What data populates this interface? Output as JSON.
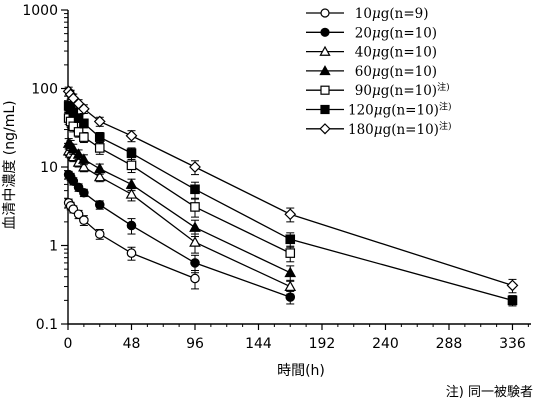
{
  "chart_data": {
    "type": "line",
    "xlabel": "時間(h)",
    "ylabel": "血清中濃度 (ng/mL)",
    "xlim": [
      0,
      350
    ],
    "ylim": [
      0.1,
      1000
    ],
    "y_scale": "log",
    "x_ticks": [
      0,
      48,
      96,
      144,
      192,
      240,
      288,
      336
    ],
    "y_ticks": [
      {
        "value": 0.1,
        "label": "0.1"
      },
      {
        "value": 1,
        "label": "1"
      },
      {
        "value": 10,
        "label": "10"
      },
      {
        "value": 100,
        "label": "100"
      },
      {
        "value": 1000,
        "label": "1000"
      }
    ],
    "legend_position": "top-right",
    "footnote": "注) 同一被験者",
    "series": [
      {
        "name": "10μg(n=9)",
        "marker": "circle-open",
        "legend": {
          "dose": "10",
          "unit": "μg",
          "n": "(n=9)",
          "note": ""
        },
        "points": [
          {
            "x": 0.5,
            "y": 3.5,
            "err": 0.4
          },
          {
            "x": 2,
            "y": 3.2,
            "err": 0.35
          },
          {
            "x": 4,
            "y": 2.9,
            "err": 0.3
          },
          {
            "x": 8,
            "y": 2.5,
            "err": 0.3
          },
          {
            "x": 12,
            "y": 2.1,
            "err": 0.3
          },
          {
            "x": 24,
            "y": 1.4,
            "err": 0.2
          },
          {
            "x": 48,
            "y": 0.8,
            "err": 0.15
          },
          {
            "x": 96,
            "y": 0.38,
            "err": 0.1
          }
        ]
      },
      {
        "name": "20μg(n=10)",
        "marker": "circle-filled",
        "legend": {
          "dose": "20",
          "unit": "μg",
          "n": "(n=10)",
          "note": ""
        },
        "points": [
          {
            "x": 0.5,
            "y": 8,
            "err": 0.8
          },
          {
            "x": 2,
            "y": 7.5,
            "err": 0.8
          },
          {
            "x": 4,
            "y": 6.6,
            "err": 0.7
          },
          {
            "x": 8,
            "y": 5.5,
            "err": 0.6
          },
          {
            "x": 12,
            "y": 4.7,
            "err": 0.5
          },
          {
            "x": 24,
            "y": 3.3,
            "err": 0.4
          },
          {
            "x": 48,
            "y": 1.8,
            "err": 0.4
          },
          {
            "x": 96,
            "y": 0.6,
            "err": 0.15
          },
          {
            "x": 168,
            "y": 0.22,
            "err": 0.04
          }
        ]
      },
      {
        "name": "40μg(n=10)",
        "marker": "triangle-open",
        "legend": {
          "dose": "40",
          "unit": "μg",
          "n": "(n=10)",
          "note": ""
        },
        "points": [
          {
            "x": 0.5,
            "y": 16,
            "err": 2
          },
          {
            "x": 2,
            "y": 15,
            "err": 2
          },
          {
            "x": 4,
            "y": 13.5,
            "err": 1.8
          },
          {
            "x": 8,
            "y": 11.5,
            "err": 1.5
          },
          {
            "x": 12,
            "y": 10,
            "err": 1.3
          },
          {
            "x": 24,
            "y": 7.5,
            "err": 1
          },
          {
            "x": 48,
            "y": 4.5,
            "err": 0.8
          },
          {
            "x": 96,
            "y": 1.1,
            "err": 0.3
          },
          {
            "x": 168,
            "y": 0.3,
            "err": 0.06
          }
        ]
      },
      {
        "name": "60μg(n=10)",
        "marker": "triangle-filled",
        "legend": {
          "dose": "60",
          "unit": "μg",
          "n": "(n=10)",
          "note": ""
        },
        "points": [
          {
            "x": 0.5,
            "y": 20,
            "err": 3
          },
          {
            "x": 2,
            "y": 19,
            "err": 2.8
          },
          {
            "x": 4,
            "y": 17,
            "err": 2.5
          },
          {
            "x": 8,
            "y": 14.5,
            "err": 2
          },
          {
            "x": 12,
            "y": 12.5,
            "err": 1.8
          },
          {
            "x": 24,
            "y": 9.5,
            "err": 1.4
          },
          {
            "x": 48,
            "y": 6,
            "err": 1
          },
          {
            "x": 96,
            "y": 1.7,
            "err": 0.4
          },
          {
            "x": 168,
            "y": 0.45,
            "err": 0.1
          }
        ]
      },
      {
        "name": "90μg(n=10)注)",
        "marker": "square-open",
        "legend": {
          "dose": "90",
          "unit": "μg",
          "n": "(n=10)",
          "note": "注)"
        },
        "points": [
          {
            "x": 0.5,
            "y": 42,
            "err": 7
          },
          {
            "x": 2,
            "y": 38,
            "err": 6
          },
          {
            "x": 4,
            "y": 33,
            "err": 5
          },
          {
            "x": 8,
            "y": 28,
            "err": 4
          },
          {
            "x": 12,
            "y": 24,
            "err": 3.5
          },
          {
            "x": 24,
            "y": 17.5,
            "err": 3
          },
          {
            "x": 48,
            "y": 10.5,
            "err": 2
          },
          {
            "x": 96,
            "y": 3.1,
            "err": 0.8
          },
          {
            "x": 168,
            "y": 0.8,
            "err": 0.18
          }
        ]
      },
      {
        "name": "120μg(n=10)注)",
        "marker": "square-filled",
        "legend": {
          "dose": "120",
          "unit": "μg",
          "n": "(n=10)",
          "note": "注)"
        },
        "points": [
          {
            "x": 0.5,
            "y": 60,
            "err": 8
          },
          {
            "x": 2,
            "y": 55,
            "err": 7
          },
          {
            "x": 4,
            "y": 50,
            "err": 6
          },
          {
            "x": 8,
            "y": 42,
            "err": 5
          },
          {
            "x": 12,
            "y": 36,
            "err": 4.5
          },
          {
            "x": 24,
            "y": 24,
            "err": 3.5
          },
          {
            "x": 48,
            "y": 15,
            "err": 2.5
          },
          {
            "x": 96,
            "y": 5.2,
            "err": 1.2
          },
          {
            "x": 168,
            "y": 1.2,
            "err": 0.25
          },
          {
            "x": 336,
            "y": 0.2,
            "err": 0.03
          }
        ]
      },
      {
        "name": "180μg(n=10)注)",
        "marker": "diamond-open",
        "legend": {
          "dose": "180",
          "unit": "μg",
          "n": "(n=10)",
          "note": "注)"
        },
        "points": [
          {
            "x": 0.5,
            "y": 92,
            "err": 12
          },
          {
            "x": 2,
            "y": 84,
            "err": 11
          },
          {
            "x": 4,
            "y": 75,
            "err": 10
          },
          {
            "x": 8,
            "y": 64,
            "err": 8
          },
          {
            "x": 12,
            "y": 55,
            "err": 7
          },
          {
            "x": 24,
            "y": 38,
            "err": 5
          },
          {
            "x": 48,
            "y": 25,
            "err": 4
          },
          {
            "x": 96,
            "y": 10,
            "err": 2
          },
          {
            "x": 168,
            "y": 2.5,
            "err": 0.5
          },
          {
            "x": 336,
            "y": 0.31,
            "err": 0.06
          }
        ]
      }
    ]
  }
}
